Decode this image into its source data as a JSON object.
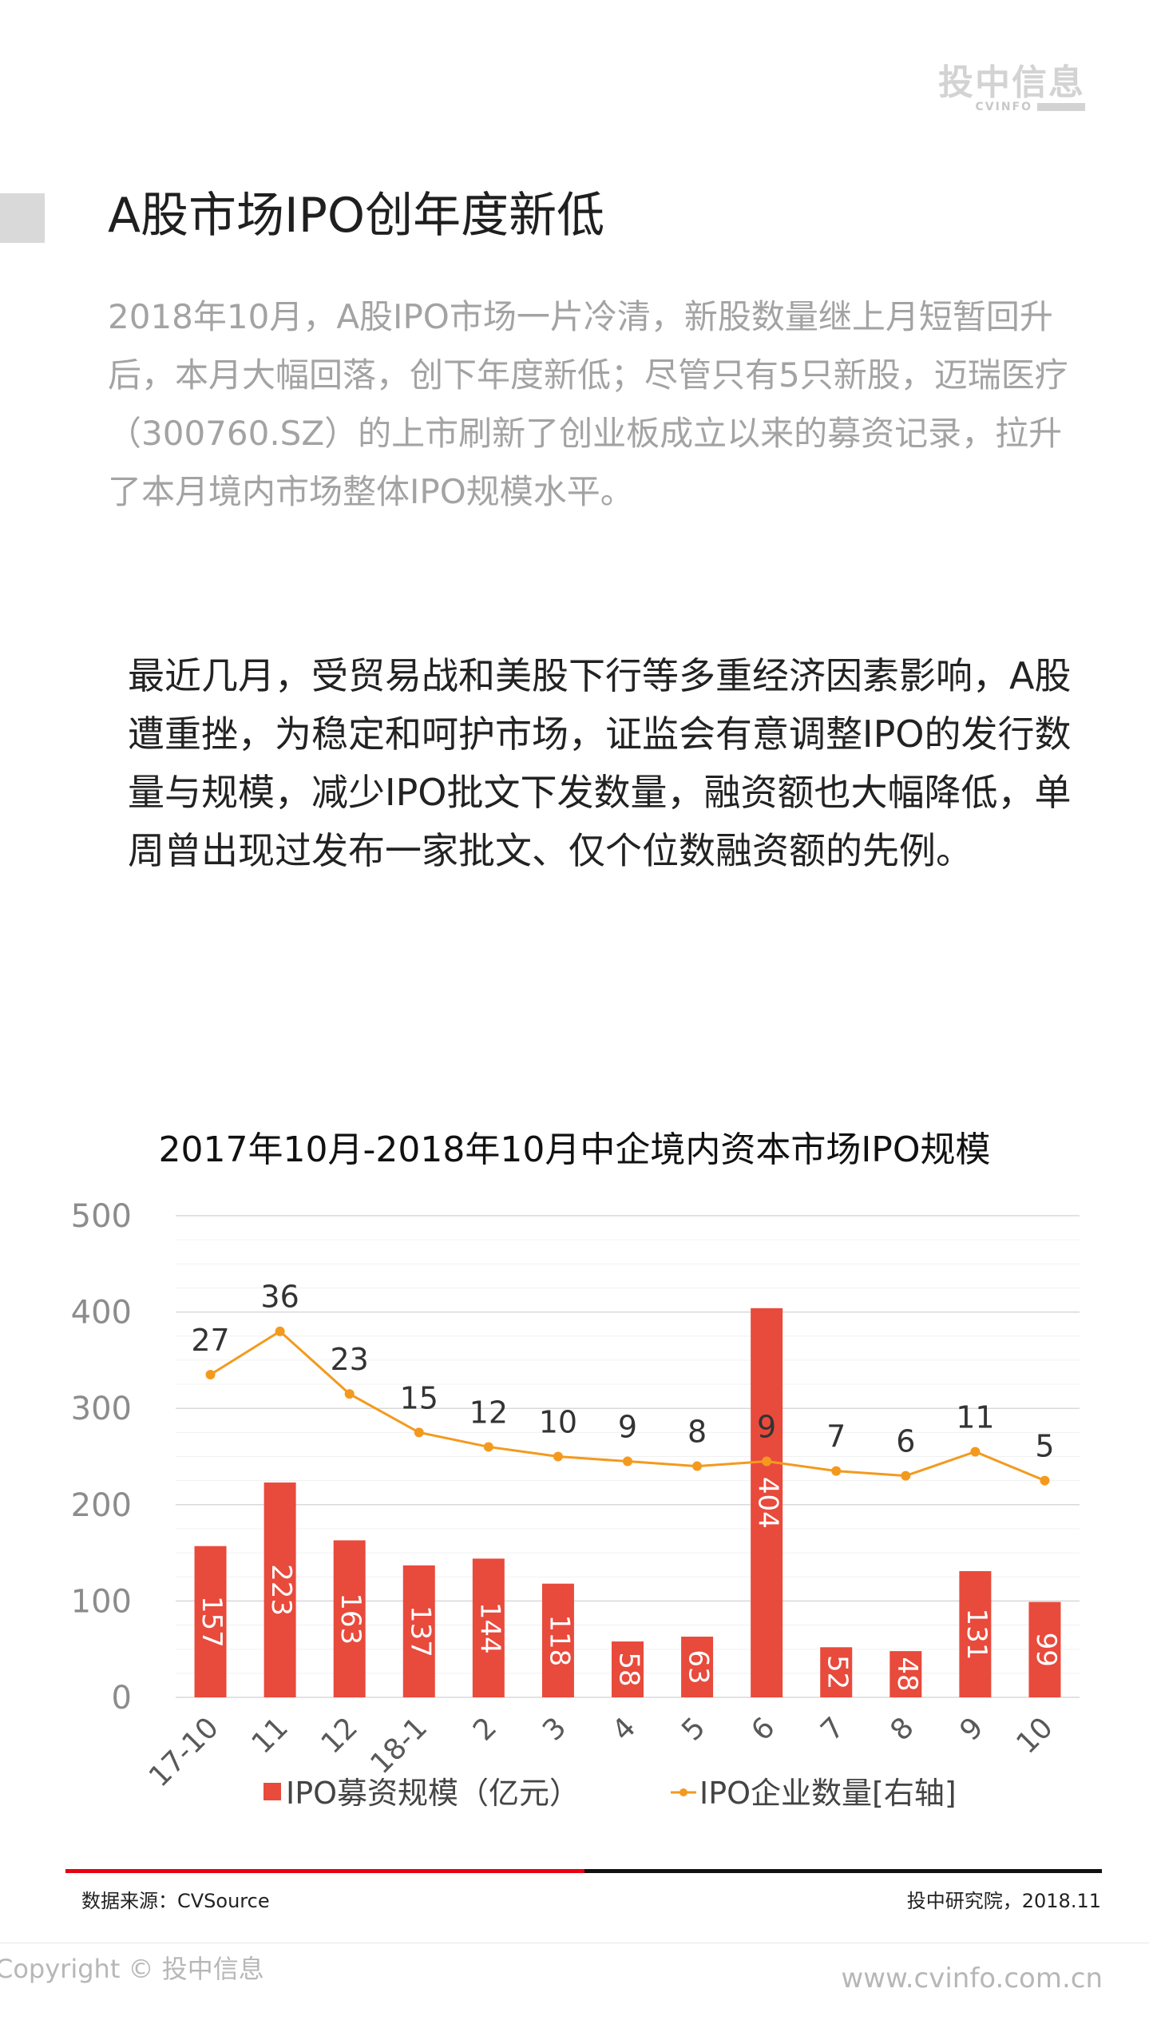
{
  "brand": {
    "logo_cn": "投中信息",
    "logo_en": "CVINFO"
  },
  "page_title": "A股市场IPO创年度新低",
  "intro": "2018年10月，A股IPO市场一片冷清，新股数量继上月短暂回升后，本月大幅回落，创下年度新低；尽管只有5只新股，迈瑞医疗（300760.SZ）的上市刷新了创业板成立以来的募资记录，拉升了本月境内市场整体IPO规模水平。",
  "body": "最近几月，受贸易战和美股下行等多重经济因素影响，A股遭重挫，为稳定和呵护市场，证监会有意调整IPO的发行数量与规模，减少IPO批文下发数量，融资额也大幅降低，单周曾出现过发布一家批文、仅个位数融资额的先例。",
  "chart_data": {
    "type": "bar+line",
    "title": "2017年10月-2018年10月中企境内资本市场IPO规模",
    "categories": [
      "17-10",
      "11",
      "12",
      "18-1",
      "2",
      "3",
      "4",
      "5",
      "6",
      "7",
      "8",
      "9",
      "10"
    ],
    "series": [
      {
        "name": "IPO募资规模（亿元）",
        "type": "bar",
        "axis": "left",
        "color": "#e84a3c",
        "values": [
          157,
          223,
          163,
          137,
          144,
          118,
          58,
          63,
          404,
          52,
          48,
          131,
          99
        ]
      },
      {
        "name": "IPO企业数量[右轴]",
        "type": "line",
        "axis": "right",
        "color": "#f39a1e",
        "values": [
          27,
          36,
          23,
          15,
          12,
          10,
          9,
          8,
          9,
          7,
          6,
          11,
          5
        ]
      }
    ],
    "y_left": {
      "range": [
        0,
        500
      ],
      "ticks": [
        0,
        100,
        200,
        300,
        400,
        500
      ]
    },
    "y_right": {
      "range": [
        -40,
        60
      ],
      "visible": false
    },
    "grid": true,
    "legend": "bottom"
  },
  "footer": {
    "source": "数据来源：CVSource",
    "org": "投中研究院，2018.11",
    "copyright": "Copyright © 投中信息",
    "website": "www.cvinfo.com.cn"
  }
}
